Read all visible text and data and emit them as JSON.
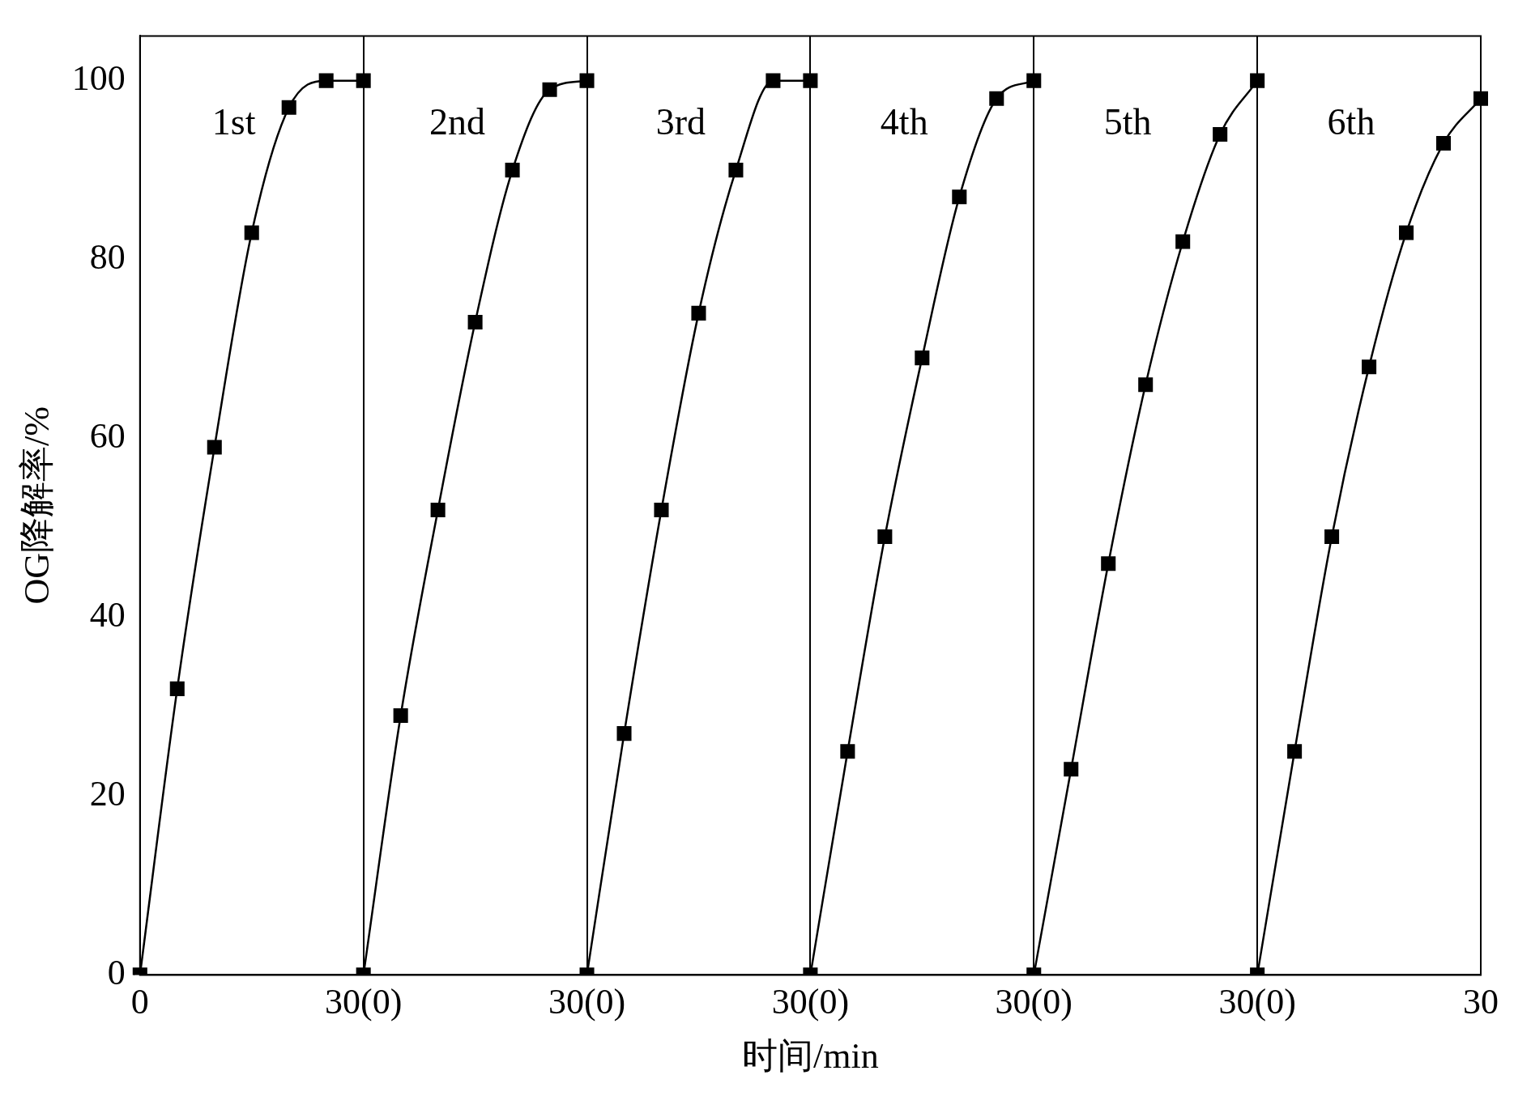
{
  "chart_data": {
    "type": "line",
    "xlabel": "时间/min",
    "ylabel": "OG降解率/%",
    "categories": [
      "0",
      null,
      null,
      null,
      null,
      null,
      "30(0)",
      null,
      null,
      null,
      null,
      null,
      "30(0)",
      null,
      null,
      null,
      null,
      null,
      "30(0)",
      null,
      null,
      null,
      null,
      null,
      "30(0)",
      null,
      null,
      null,
      null,
      null,
      "30(0)",
      null,
      null,
      null,
      null,
      null,
      "30"
    ],
    "ylim": [
      0,
      105
    ],
    "yticks": [
      0,
      20,
      40,
      60,
      80,
      100
    ],
    "series": [
      {
        "color": "#000000",
        "values": [
          0,
          32,
          59,
          83,
          97,
          100,
          100,
          null,
          null,
          null,
          null,
          null,
          null,
          null,
          null,
          null,
          null,
          null,
          null,
          null,
          null,
          null,
          null,
          null,
          null,
          null,
          null,
          null,
          null,
          null,
          null,
          null,
          null,
          null,
          null,
          null,
          null
        ]
      },
      {
        "color": "#000000",
        "values": [
          null,
          null,
          null,
          null,
          null,
          null,
          0,
          29,
          52,
          73,
          90,
          99,
          100,
          null,
          null,
          null,
          null,
          null,
          null,
          null,
          null,
          null,
          null,
          null,
          null,
          null,
          null,
          null,
          null,
          null,
          null,
          null,
          null,
          null,
          null,
          null,
          null
        ]
      },
      {
        "color": "#000000",
        "values": [
          null,
          null,
          null,
          null,
          null,
          null,
          null,
          null,
          null,
          null,
          null,
          null,
          0,
          27,
          52,
          74,
          90,
          100,
          100,
          null,
          null,
          null,
          null,
          null,
          null,
          null,
          null,
          null,
          null,
          null,
          null,
          null,
          null,
          null,
          null,
          null,
          null
        ]
      },
      {
        "color": "#000000",
        "values": [
          null,
          null,
          null,
          null,
          null,
          null,
          null,
          null,
          null,
          null,
          null,
          null,
          null,
          null,
          null,
          null,
          null,
          null,
          0,
          25,
          49,
          69,
          87,
          98,
          100,
          null,
          null,
          null,
          null,
          null,
          null,
          null,
          null,
          null,
          null,
          null,
          null
        ]
      },
      {
        "color": "#000000",
        "values": [
          null,
          null,
          null,
          null,
          null,
          null,
          null,
          null,
          null,
          null,
          null,
          null,
          null,
          null,
          null,
          null,
          null,
          null,
          null,
          null,
          null,
          null,
          null,
          null,
          0,
          23,
          46,
          66,
          82,
          94,
          100,
          null,
          null,
          null,
          null,
          null,
          null
        ]
      },
      {
        "color": "#000000",
        "values": [
          null,
          null,
          null,
          null,
          null,
          null,
          null,
          null,
          null,
          null,
          null,
          null,
          null,
          null,
          null,
          null,
          null,
          null,
          null,
          null,
          null,
          null,
          null,
          null,
          null,
          null,
          null,
          null,
          null,
          null,
          0,
          25,
          49,
          68,
          83,
          93,
          98
        ]
      }
    ],
    "annotations": [
      "1st",
      "2nd",
      "3rd",
      "4th",
      "5th",
      "6th"
    ],
    "marker": "square",
    "line_style": "solid",
    "grid": "x",
    "legend": false
  }
}
